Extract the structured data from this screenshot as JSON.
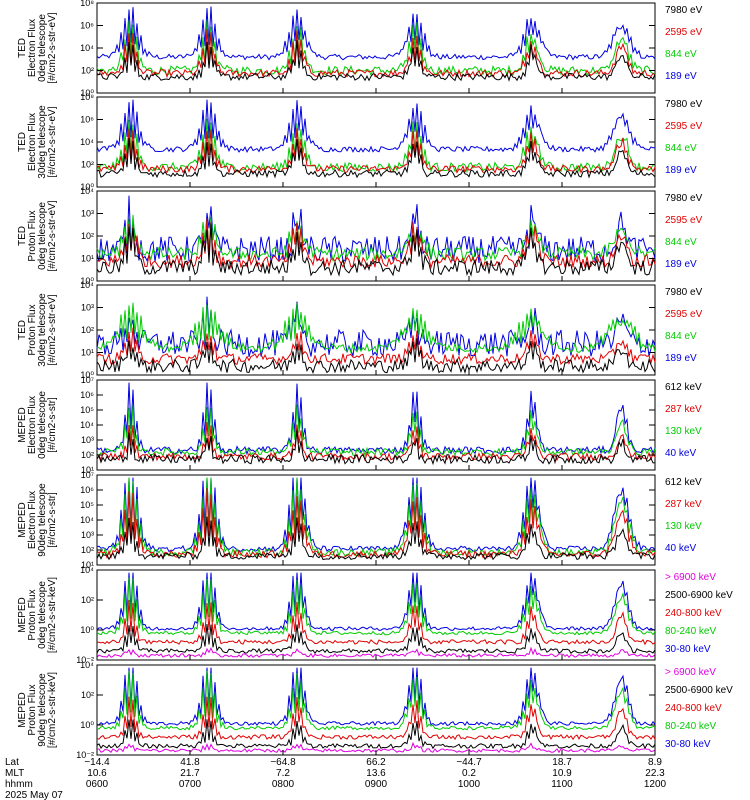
{
  "chart_data": {
    "type": "line",
    "panels": [
      {
        "ylabel": [
          "TED",
          "Electron Flux",
          "0deg telescope",
          "[#/cm2-s-str-eV]"
        ],
        "yticks": [
          "10⁸",
          "10⁶",
          "10⁴",
          "10²",
          "10⁰"
        ],
        "ylim": [
          1,
          100000000
        ],
        "legend": [
          {
            "label": "7980 eV",
            "color": "#000000"
          },
          {
            "label": "2595 eV",
            "color": "#e00000"
          },
          {
            "label": "844 eV",
            "color": "#00cc00"
          },
          {
            "label": "189 eV",
            "color": "#0000e0"
          }
        ]
      },
      {
        "ylabel": [
          "TED",
          "Electron Flux",
          "30deg telescope",
          "[#/cm2-s-str-eV]"
        ],
        "yticks": [
          "10⁸",
          "10⁶",
          "10⁴",
          "10²",
          "10⁰"
        ],
        "ylim": [
          1,
          100000000
        ],
        "legend": [
          {
            "label": "7980 eV",
            "color": "#000000"
          },
          {
            "label": "2595 eV",
            "color": "#e00000"
          },
          {
            "label": "844 eV",
            "color": "#00cc00"
          },
          {
            "label": "189 eV",
            "color": "#0000e0"
          }
        ]
      },
      {
        "ylabel": [
          "TED",
          "Proton Flux",
          "0deg telescope",
          "[#/cm2-s-str-eV]"
        ],
        "yticks": [
          "10⁴",
          "10³",
          "10²",
          "10¹",
          "10⁰"
        ],
        "ylim": [
          1,
          10000
        ],
        "legend": [
          {
            "label": "7980 eV",
            "color": "#000000"
          },
          {
            "label": "2595 eV",
            "color": "#e00000"
          },
          {
            "label": "844 eV",
            "color": "#00cc00"
          },
          {
            "label": "189 eV",
            "color": "#0000e0"
          }
        ]
      },
      {
        "ylabel": [
          "TED",
          "Proton Flux",
          "30deg telescope",
          "[#/cm2-s-str-eV]"
        ],
        "yticks": [
          "10⁴",
          "10³",
          "10²",
          "10¹",
          "10⁰"
        ],
        "ylim": [
          1,
          10000
        ],
        "legend": [
          {
            "label": "7980 eV",
            "color": "#000000"
          },
          {
            "label": "2595 eV",
            "color": "#e00000"
          },
          {
            "label": "844 eV",
            "color": "#00cc00"
          },
          {
            "label": "189 eV",
            "color": "#0000e0"
          }
        ]
      },
      {
        "ylabel": [
          "MEPED",
          "Electron Flux",
          "0deg telescope",
          "[#/cm2-s-str]"
        ],
        "yticks": [
          "10⁷",
          "10⁶",
          "10⁵",
          "10⁴",
          "10³",
          "10²",
          "10¹"
        ],
        "ylim": [
          10,
          10000000
        ],
        "legend": [
          {
            "label": "612 keV",
            "color": "#000000"
          },
          {
            "label": "287 keV",
            "color": "#e00000"
          },
          {
            "label": "130 keV",
            "color": "#00cc00"
          },
          {
            "label": "40 keV",
            "color": "#0000e0"
          }
        ]
      },
      {
        "ylabel": [
          "MEPED",
          "Electron Flux",
          "90deg telescope",
          "[#/cm2-s-str]"
        ],
        "yticks": [
          "10⁷",
          "10⁶",
          "10⁵",
          "10⁴",
          "10³",
          "10²",
          "10¹"
        ],
        "ylim": [
          10,
          10000000
        ],
        "legend": [
          {
            "label": "612 keV",
            "color": "#000000"
          },
          {
            "label": "287 keV",
            "color": "#e00000"
          },
          {
            "label": "130 keV",
            "color": "#00cc00"
          },
          {
            "label": "40 keV",
            "color": "#0000e0"
          }
        ]
      },
      {
        "ylabel": [
          "MEPED",
          "Proton Flux",
          "0deg telescope",
          "[#/cm2-s-str-keV]"
        ],
        "yticks": [
          "10⁴",
          "10²",
          "10⁰",
          "10⁻²"
        ],
        "ylim": [
          0.01,
          100000
        ],
        "legend": [
          {
            "label": "> 6900 keV",
            "color": "#e000e0"
          },
          {
            "label": "2500-6900 keV",
            "color": "#000000"
          },
          {
            "label": "240-800 keV",
            "color": "#e00000"
          },
          {
            "label": "80-240 keV",
            "color": "#00cc00"
          },
          {
            "label": "30-80 keV",
            "color": "#0000e0"
          }
        ]
      },
      {
        "ylabel": [
          "MEPED",
          "Proton Flux",
          "90deg telescope",
          "[#/cm2-s-str-keV]"
        ],
        "yticks": [
          "10⁴",
          "10²",
          "10⁰",
          "10⁻²"
        ],
        "ylim": [
          0.01,
          100000
        ],
        "legend": [
          {
            "label": "> 6900 keV",
            "color": "#e000e0"
          },
          {
            "label": "2500-6900 keV",
            "color": "#000000"
          },
          {
            "label": "240-800 keV",
            "color": "#e00000"
          },
          {
            "label": "80-240 keV",
            "color": "#00cc00"
          },
          {
            "label": "30-80 keV",
            "color": "#0000e0"
          }
        ]
      }
    ],
    "x_axis": {
      "row_labels": [
        "Lat",
        "MLT",
        "hhmm"
      ],
      "ticks": [
        {
          "lat": "−14.4",
          "mlt": "10.6",
          "hhmm": "0600"
        },
        {
          "lat": "41.8",
          "mlt": "21.7",
          "hhmm": "0700"
        },
        {
          "lat": "−64.8",
          "mlt": "7.2",
          "hhmm": "0800"
        },
        {
          "lat": "66.2",
          "mlt": "13.6",
          "hhmm": "0900"
        },
        {
          "lat": "−44.7",
          "mlt": "0.2",
          "hhmm": "1000"
        },
        {
          "lat": "18.7",
          "mlt": "10.9",
          "hhmm": "1100"
        },
        {
          "lat": "8.9",
          "mlt": "22.3",
          "hhmm": "1200"
        }
      ],
      "date": "2025 May 07"
    }
  }
}
